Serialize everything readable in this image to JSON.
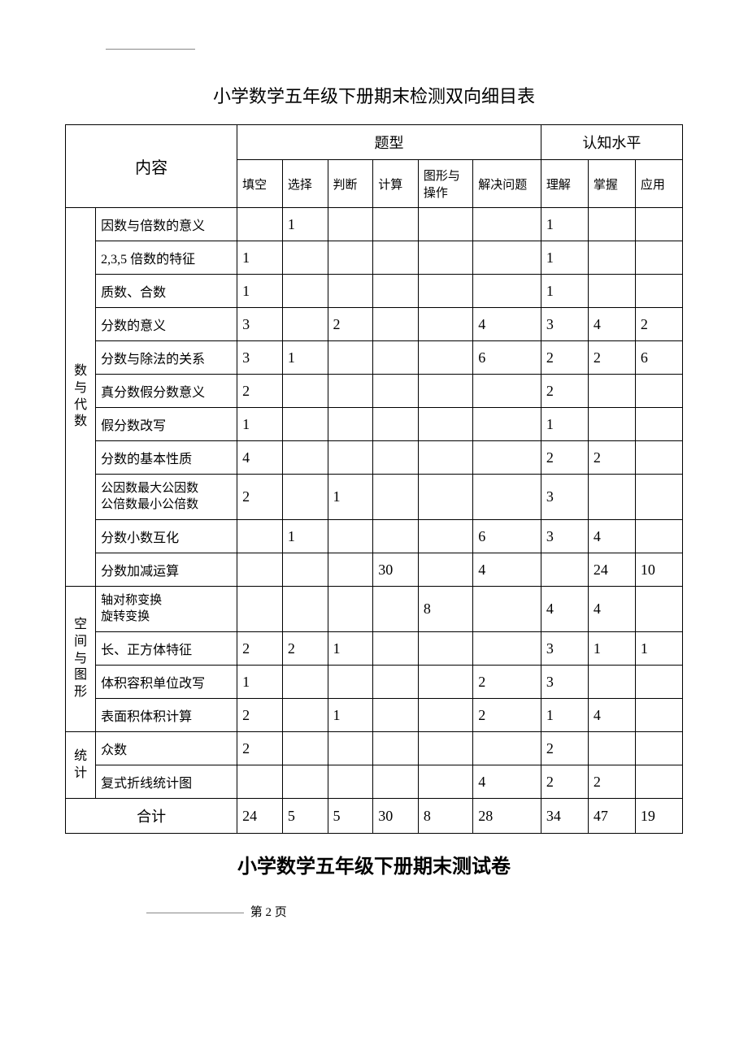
{
  "title": "小学数学五年级下册期末检测双向细目表",
  "headers": {
    "content": "内容",
    "qtype": "题型",
    "cognition": "认知水平",
    "qcols": [
      "填空",
      "选择",
      "判断",
      "计算",
      "图形与操作",
      "解决问题"
    ],
    "ccols": [
      "理解",
      "掌握",
      "应用"
    ]
  },
  "groups": [
    {
      "name": "数与代数",
      "rows": [
        {
          "topic": "因数与倍数的意义",
          "v": [
            "",
            "1",
            "",
            "",
            "",
            "",
            "1",
            "",
            ""
          ]
        },
        {
          "topic": "2,3,5 倍数的特征",
          "v": [
            "1",
            "",
            "",
            "",
            "",
            "",
            "1",
            "",
            ""
          ]
        },
        {
          "topic": "质数、合数",
          "v": [
            "1",
            "",
            "",
            "",
            "",
            "",
            "1",
            "",
            ""
          ]
        },
        {
          "topic": "分数的意义",
          "v": [
            "3",
            "",
            "2",
            "",
            "",
            "4",
            "3",
            "4",
            "2"
          ]
        },
        {
          "topic": "分数与除法的关系",
          "v": [
            "3",
            "1",
            "",
            "",
            "",
            "6",
            "2",
            "2",
            "6"
          ]
        },
        {
          "topic": "真分数假分数意义",
          "v": [
            "2",
            "",
            "",
            "",
            "",
            "",
            "2",
            "",
            ""
          ]
        },
        {
          "topic": "假分数改写",
          "v": [
            "1",
            "",
            "",
            "",
            "",
            "",
            "1",
            "",
            ""
          ]
        },
        {
          "topic": "分数的基本性质",
          "v": [
            "4",
            "",
            "",
            "",
            "",
            "",
            "2",
            "2",
            ""
          ]
        },
        {
          "topic": "公因数最大公因数\n公倍数最小公倍数",
          "v": [
            "2",
            "",
            "1",
            "",
            "",
            "",
            "3",
            "",
            ""
          ]
        },
        {
          "topic": "分数小数互化",
          "v": [
            "",
            "1",
            "",
            "",
            "",
            "6",
            "3",
            "4",
            ""
          ]
        },
        {
          "topic": "分数加减运算",
          "v": [
            "",
            "",
            "",
            "30",
            "",
            "4",
            "",
            "24",
            "10"
          ]
        }
      ]
    },
    {
      "name": "空间与图形",
      "rows": [
        {
          "topic": "轴对称变换\n旋转变换",
          "v": [
            "",
            "",
            "",
            "",
            "8",
            "",
            "4",
            "4",
            ""
          ]
        },
        {
          "topic": "长、正方体特征",
          "v": [
            "2",
            "2",
            "1",
            "",
            "",
            "",
            "3",
            "1",
            "1"
          ]
        },
        {
          "topic": "体积容积单位改写",
          "v": [
            "1",
            "",
            "",
            "",
            "",
            "2",
            "3",
            "",
            ""
          ]
        },
        {
          "topic": "表面积体积计算",
          "v": [
            "2",
            "",
            "1",
            "",
            "",
            "2",
            "1",
            "4",
            ""
          ]
        }
      ]
    },
    {
      "name": "统计",
      "rows": [
        {
          "topic": "众数",
          "v": [
            "2",
            "",
            "",
            "",
            "",
            "",
            "2",
            "",
            ""
          ]
        },
        {
          "topic": "复式折线统计图",
          "v": [
            "",
            "",
            "",
            "",
            "",
            "4",
            "2",
            "2",
            ""
          ]
        }
      ]
    }
  ],
  "total": {
    "label": "合计",
    "v": [
      "24",
      "5",
      "5",
      "30",
      "8",
      "28",
      "34",
      "47",
      "19"
    ]
  },
  "subtitle": "小学数学五年级下册期末测试卷",
  "footer": {
    "prefix": "第",
    "page": "2",
    "suffix": "页"
  }
}
